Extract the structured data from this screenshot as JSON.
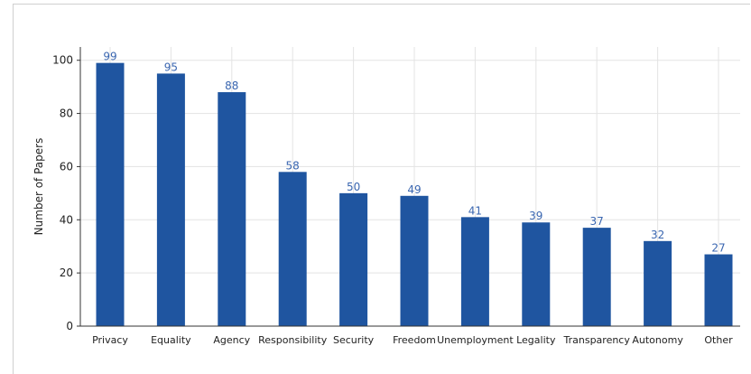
{
  "chart_data": {
    "type": "bar",
    "categories": [
      "Privacy",
      "Equality",
      "Agency",
      "Responsibility",
      "Security",
      "Freedom",
      "Unemployment",
      "Legality",
      "Transparency",
      "Autonomy",
      "Other"
    ],
    "values": [
      99,
      95,
      88,
      58,
      50,
      49,
      41,
      39,
      37,
      32,
      27
    ],
    "title": "",
    "xlabel": "",
    "ylabel": "Number of Papers",
    "ylim": [
      0,
      105
    ],
    "yticks": [
      0,
      20,
      40,
      60,
      80,
      100
    ],
    "grid": true,
    "bar_color": "#1f55a0",
    "label_color": "#3a66b0"
  }
}
